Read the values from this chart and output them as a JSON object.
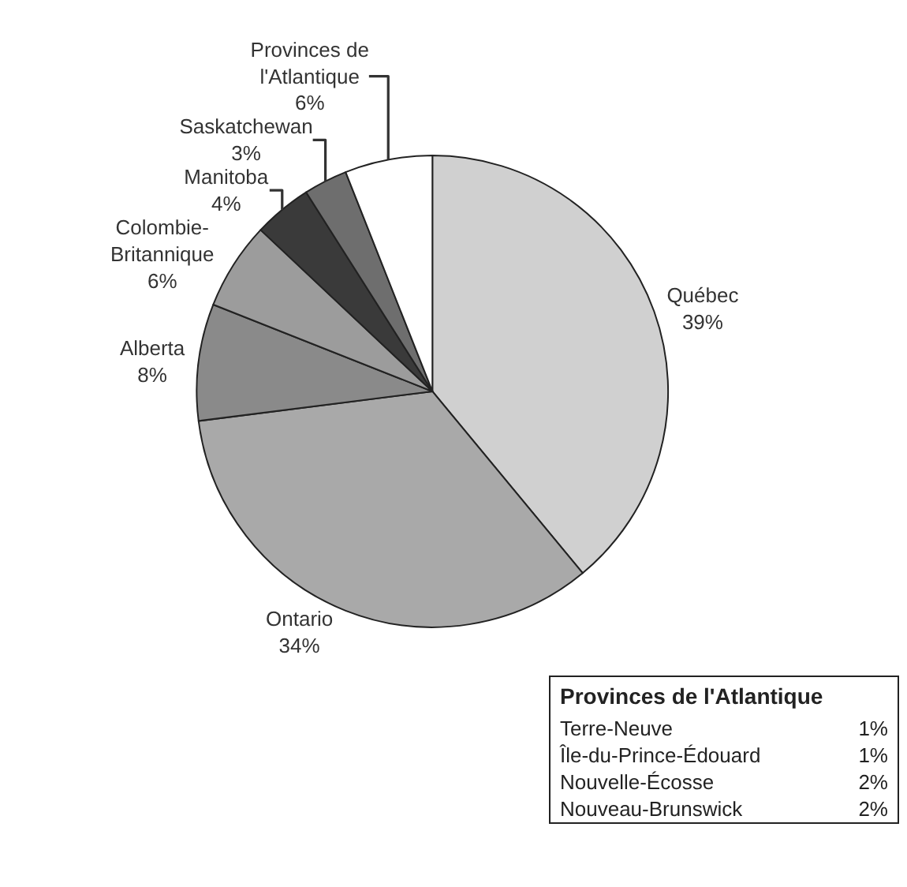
{
  "chart_data": {
    "type": "pie",
    "categories": [
      "Québec",
      "Ontario",
      "Alberta",
      "Colombie-Britannique",
      "Manitoba",
      "Saskatchewan",
      "Provinces de l'Atlantique"
    ],
    "values": [
      39,
      34,
      8,
      6,
      4,
      3,
      6
    ],
    "value_labels": [
      "39%",
      "34%",
      "8%",
      "6%",
      "4%",
      "3%",
      "6%"
    ],
    "colors": [
      "#d0d0d0",
      "#a9a9a9",
      "#8a8a8a",
      "#9c9c9c",
      "#3a3a3a",
      "#6e6e6e",
      "#ffffff"
    ],
    "annotations": [
      "Provinces de l'Atlantique",
      "Terre-Neuve",
      "1%",
      "Île-du-Prince-Édouard",
      "1%",
      "Nouvelle-Écosse",
      "2%",
      "Nouveau-Brunswick",
      "2%"
    ]
  }
}
